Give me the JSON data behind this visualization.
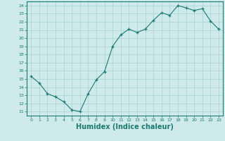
{
  "x": [
    0,
    1,
    2,
    3,
    4,
    5,
    6,
    7,
    8,
    9,
    10,
    11,
    12,
    13,
    14,
    15,
    16,
    17,
    18,
    19,
    20,
    21,
    22,
    23
  ],
  "y": [
    15.3,
    14.5,
    13.2,
    12.8,
    12.2,
    11.2,
    11.0,
    13.2,
    14.9,
    15.9,
    19.0,
    20.4,
    21.1,
    20.7,
    21.1,
    22.2,
    23.1,
    22.8,
    24.0,
    23.7,
    23.4,
    23.6,
    22.1,
    21.1
  ],
  "line_color": "#1a7a6e",
  "marker": "+",
  "marker_size": 3.5,
  "marker_color": "#1a7a6e",
  "bg_color": "#ceeaea",
  "grid_color": "#aacfcf",
  "tick_color": "#1a7a6e",
  "xlabel": "Humidex (Indice chaleur)",
  "xlabel_fontsize": 7,
  "ylabel_ticks": [
    11,
    12,
    13,
    14,
    15,
    16,
    17,
    18,
    19,
    20,
    21,
    22,
    23,
    24
  ],
  "xlim": [
    -0.5,
    23.5
  ],
  "ylim": [
    10.5,
    24.5
  ]
}
